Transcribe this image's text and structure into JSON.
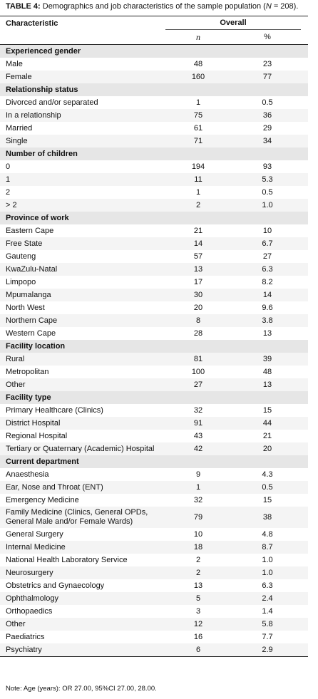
{
  "caption": {
    "label": "TABLE 4:",
    "text": "Demographics and job characteristics of the sample population (",
    "n_symbol": "N",
    "n_value": "= 208)."
  },
  "header": {
    "characteristic": "Characteristic",
    "overall": "Overall",
    "n": "n",
    "percent": "%"
  },
  "sections": [
    {
      "title": "Experienced gender",
      "rows": [
        {
          "label": "Male",
          "n": 48,
          "percent": 23
        },
        {
          "label": "Female",
          "n": 160,
          "percent": 77
        }
      ]
    },
    {
      "title": "Relationship status",
      "rows": [
        {
          "label": "Divorced and/or separated",
          "n": 1,
          "percent": 0.5
        },
        {
          "label": "In a relationship",
          "n": 75,
          "percent": 36
        },
        {
          "label": "Married",
          "n": 61,
          "percent": 29
        },
        {
          "label": "Single",
          "n": 71,
          "percent": 34
        }
      ]
    },
    {
      "title": "Number of children",
      "rows": [
        {
          "label": "0",
          "n": 194,
          "percent": 93
        },
        {
          "label": "1",
          "n": 11,
          "percent": 5.3
        },
        {
          "label": "2",
          "n": 1,
          "percent": 0.5
        },
        {
          "label": "> 2",
          "n": 2,
          "percent": "1.0"
        }
      ]
    },
    {
      "title": "Province of work",
      "rows": [
        {
          "label": "Eastern Cape",
          "n": 21,
          "percent": 10
        },
        {
          "label": "Free State",
          "n": 14,
          "percent": 6.7
        },
        {
          "label": "Gauteng",
          "n": 57,
          "percent": 27
        },
        {
          "label": "KwaZulu-Natal",
          "n": 13,
          "percent": 6.3
        },
        {
          "label": "Limpopo",
          "n": 17,
          "percent": 8.2
        },
        {
          "label": "Mpumalanga",
          "n": 30,
          "percent": 14
        },
        {
          "label": "North West",
          "n": 20,
          "percent": 9.6
        },
        {
          "label": "Northern Cape",
          "n": 8,
          "percent": 3.8
        },
        {
          "label": "Western Cape",
          "n": 28,
          "percent": 13
        }
      ]
    },
    {
      "title": "Facility location",
      "rows": [
        {
          "label": "Rural",
          "n": 81,
          "percent": 39
        },
        {
          "label": "Metropolitan",
          "n": 100,
          "percent": 48
        },
        {
          "label": "Other",
          "n": 27,
          "percent": 13
        }
      ]
    },
    {
      "title": "Facility type",
      "rows": [
        {
          "label": "Primary Healthcare (Clinics)",
          "n": 32,
          "percent": 15
        },
        {
          "label": "District Hospital",
          "n": 91,
          "percent": 44
        },
        {
          "label": "Regional Hospital",
          "n": 43,
          "percent": 21
        },
        {
          "label": "Tertiary or Quaternary (Academic) Hospital",
          "n": 42,
          "percent": 20
        }
      ]
    },
    {
      "title": "Current department",
      "rows": [
        {
          "label": "Anaesthesia",
          "n": 9,
          "percent": 4.3
        },
        {
          "label": "Ear, Nose and Throat (ENT)",
          "n": 1,
          "percent": 0.5
        },
        {
          "label": "Emergency Medicine",
          "n": 32,
          "percent": 15
        },
        {
          "label": "Family Medicine (Clinics, General OPDs, General Male and/or Female Wards)",
          "n": 79,
          "percent": 38
        },
        {
          "label": "General Surgery",
          "n": 10,
          "percent": 4.8
        },
        {
          "label": "Internal Medicine",
          "n": 18,
          "percent": 8.7
        },
        {
          "label": "National Health Laboratory Service",
          "n": 2,
          "percent": "1.0"
        },
        {
          "label": "Neurosurgery",
          "n": 2,
          "percent": "1.0"
        },
        {
          "label": "Obstetrics and Gynaecology",
          "n": 13,
          "percent": 6.3
        },
        {
          "label": "Ophthalmology",
          "n": 5,
          "percent": 2.4
        },
        {
          "label": "Orthopaedics",
          "n": 3,
          "percent": 1.4
        },
        {
          "label": "Other",
          "n": 12,
          "percent": 5.8
        },
        {
          "label": "Paediatrics",
          "n": 16,
          "percent": 7.7
        },
        {
          "label": "Psychiatry",
          "n": 6,
          "percent": 2.9
        }
      ]
    }
  ],
  "note": "Note: Age (years): OR 27.00, 95%CI 27.00, 28.00."
}
